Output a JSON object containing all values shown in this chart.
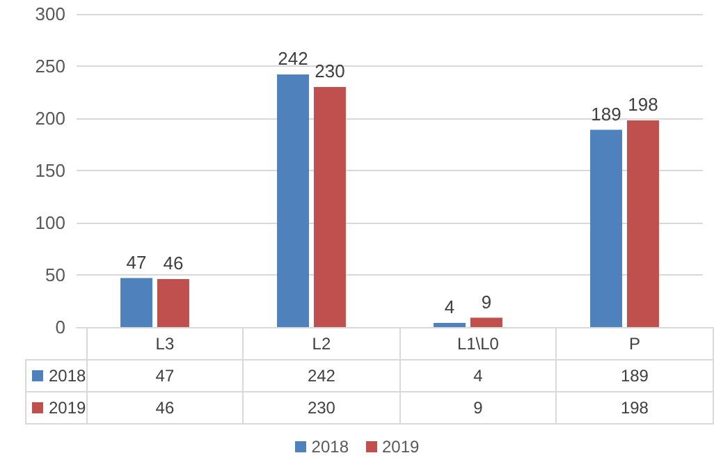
{
  "chart_data": {
    "type": "bar",
    "categories": [
      "L3",
      "L2",
      "L1\\L0",
      "P"
    ],
    "series": [
      {
        "name": "2018",
        "color": "#4f81bd",
        "values": [
          47,
          242,
          4,
          189
        ]
      },
      {
        "name": "2019",
        "color": "#c0504d",
        "values": [
          46,
          230,
          9,
          198
        ]
      }
    ],
    "annotations": [
      "47",
      "242",
      "4",
      "189",
      "46",
      "230",
      "9",
      "198"
    ],
    "ylim": [
      0,
      300
    ],
    "yticks": [
      0,
      50,
      100,
      150,
      200,
      250,
      300
    ],
    "grid": "y",
    "legend": "bottom",
    "data_labels": true
  }
}
